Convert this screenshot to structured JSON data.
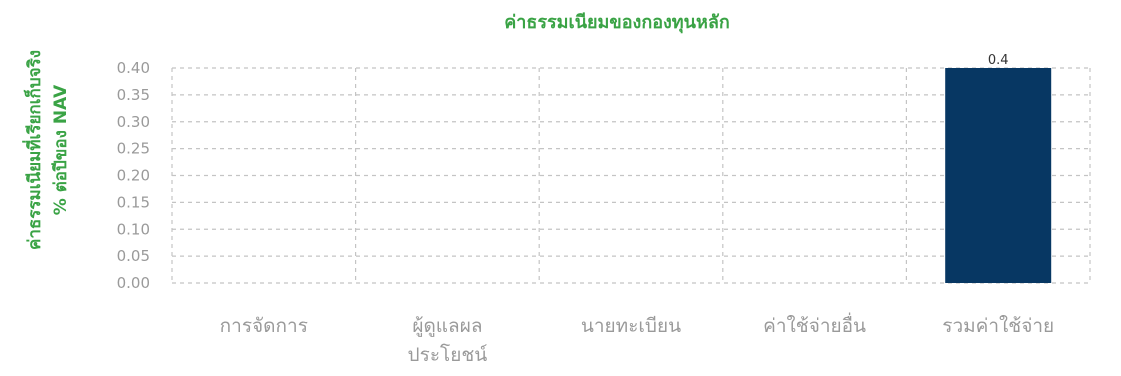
{
  "chart_data": {
    "type": "bar",
    "title": "ค่าธรรมเนียมของกองทุนหลัก",
    "ylabel_lines": [
      "ค่าธรรมเนียมที่เรียกเก็บจริง",
      "% ต่อปีของ NAV"
    ],
    "xlabel": "",
    "categories": [
      [
        "การจัดการ"
      ],
      [
        "ผู้ดูแลผล",
        "ประโยชน์"
      ],
      [
        "นายทะเบียน"
      ],
      [
        "ค่าใช้จ่ายอื่น"
      ],
      [
        "รวมค่าใช้จ่าย"
      ]
    ],
    "values": [
      0,
      0,
      0,
      0,
      0.4
    ],
    "data_labels": [
      "",
      "",
      "",
      "",
      "0.4"
    ],
    "ylim": [
      0,
      0.4
    ],
    "yticks": [
      "0.00",
      "0.05",
      "0.10",
      "0.15",
      "0.20",
      "0.25",
      "0.30",
      "0.35",
      "0.40"
    ],
    "grid": true,
    "grid_style": "dashed",
    "colors": {
      "title": "#3aa345",
      "ylabel": "#3aa345",
      "bar": "#073763",
      "grid": "#c4c4c4",
      "ticks": "#9a9a9a"
    }
  }
}
